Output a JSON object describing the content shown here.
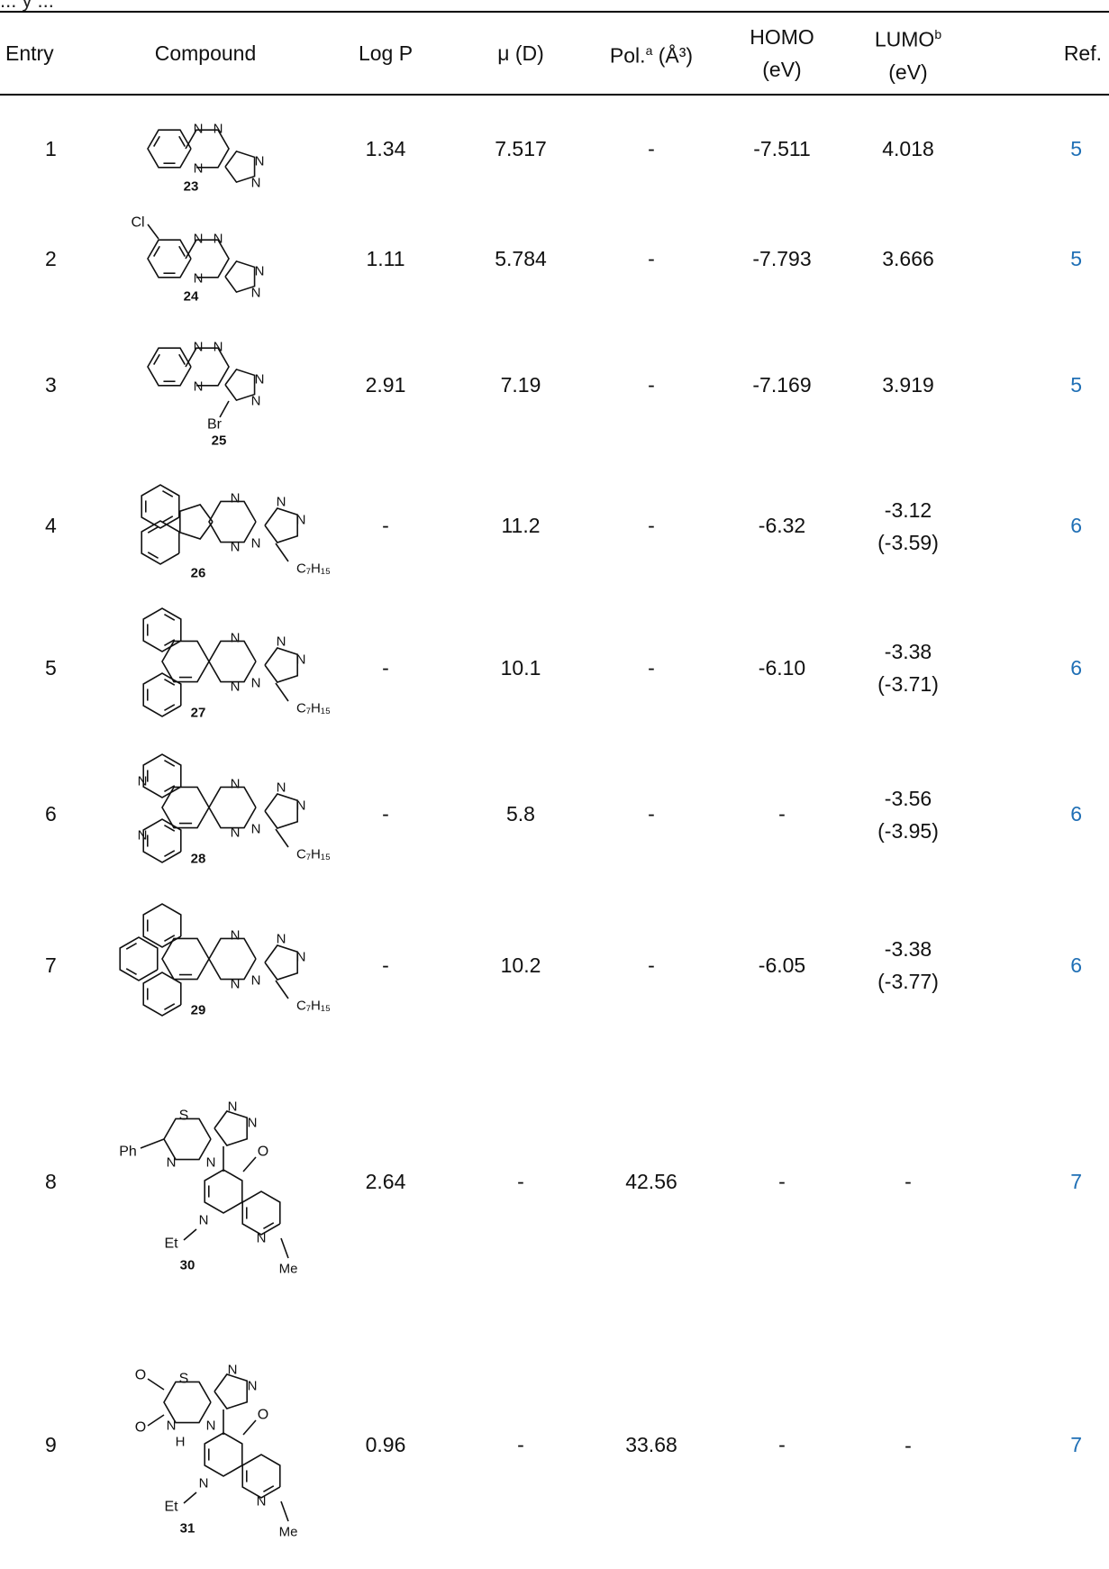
{
  "caption_fragment": "... y ...",
  "header": {
    "entry": "Entry",
    "compound": "Compound",
    "logp": "Log P",
    "mu": "μ (D)",
    "pol": "Pol.",
    "pol_sup": "a",
    "pol_unit": "(Å³)",
    "homo_1": "HOMO",
    "homo_2": "(eV)",
    "lumo_1": "LUMO",
    "lumo_sup": "b",
    "lumo_2": "(eV)",
    "ref": "Ref."
  },
  "rows": [
    {
      "entry": "1",
      "compound_id": "23",
      "logp": "1.34",
      "mu": "7.517",
      "pol": "-",
      "homo": "-7.511",
      "lumo": "4.018",
      "lumo2": "",
      "ref": "5"
    },
    {
      "entry": "2",
      "compound_id": "24",
      "logp": "1.11",
      "mu": "5.784",
      "pol": "-",
      "homo": "-7.793",
      "lumo": "3.666",
      "lumo2": "",
      "ref": "5"
    },
    {
      "entry": "3",
      "compound_id": "25",
      "logp": "2.91",
      "mu": "7.19",
      "pol": "-",
      "homo": "-7.169",
      "lumo": "3.919",
      "lumo2": "",
      "ref": "5"
    },
    {
      "entry": "4",
      "compound_id": "26",
      "logp": "-",
      "mu": "11.2",
      "pol": "-",
      "homo": "-6.32",
      "lumo": "-3.12",
      "lumo2": "(-3.59)",
      "ref": "6"
    },
    {
      "entry": "5",
      "compound_id": "27",
      "logp": "-",
      "mu": "10.1",
      "pol": "-",
      "homo": "-6.10",
      "lumo": "-3.38",
      "lumo2": "(-3.71)",
      "ref": "6"
    },
    {
      "entry": "6",
      "compound_id": "28",
      "logp": "-",
      "mu": "5.8",
      "pol": "-",
      "homo": "-",
      "lumo": "-3.56",
      "lumo2": "(-3.95)",
      "ref": "6"
    },
    {
      "entry": "7",
      "compound_id": "29",
      "logp": "-",
      "mu": "10.2",
      "pol": "-",
      "homo": "-6.05",
      "lumo": "-3.38",
      "lumo2": "(-3.77)",
      "ref": "6"
    },
    {
      "entry": "8",
      "compound_id": "30",
      "logp": "2.64",
      "mu": "-",
      "pol": "42.56",
      "homo": "-",
      "lumo": "-",
      "lumo2": "",
      "ref": "7"
    },
    {
      "entry": "9",
      "compound_id": "31",
      "logp": "0.96",
      "mu": "-",
      "pol": "33.68",
      "homo": "-",
      "lumo": "-",
      "lumo2": "",
      "ref": "7"
    }
  ],
  "atoms": {
    "n": "N",
    "cl": "Cl",
    "br": "Br",
    "s": "S",
    "o": "O",
    "h": "H",
    "ph": "Ph",
    "et": "Et",
    "me": "Me",
    "c7h15": "C₇H₁₅"
  }
}
